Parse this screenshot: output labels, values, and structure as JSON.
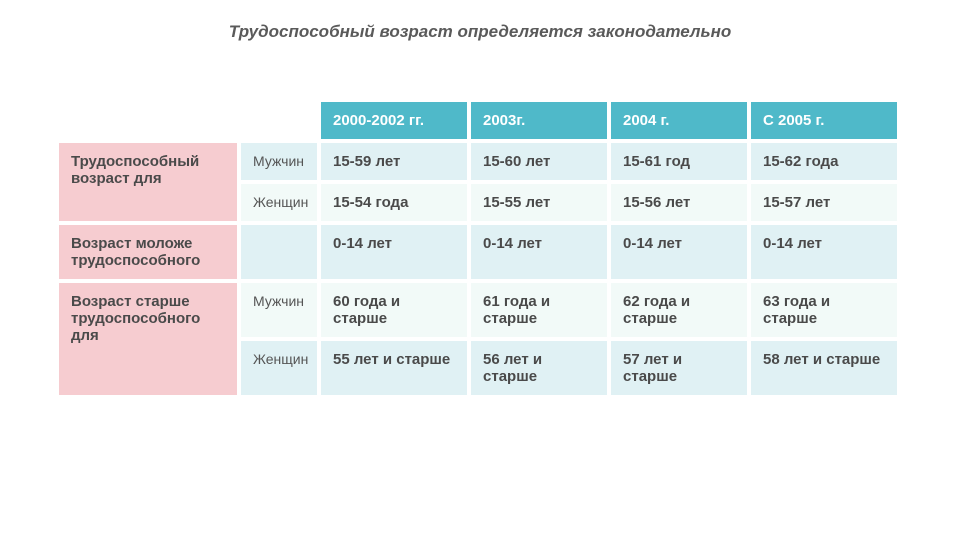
{
  "title": "Трудоспособный возраст определяется законодательно",
  "colors": {
    "header_bg": "#4fb9c9",
    "header_blank_bg": "#ffffff",
    "rowlabel_bg": "#f6ccd0",
    "cell_a_bg": "#e0f1f4",
    "cell_b_bg": "#f2faf8",
    "text": "#4a4a4a",
    "header_text": "#ffffff"
  },
  "fontsizes": {
    "title": 17,
    "header": 15,
    "cell": 15,
    "gender": 14
  },
  "columns": [
    "",
    "",
    "2000-2002 гг.",
    "2003г.",
    "2004 г.",
    "С 2005 г."
  ],
  "rows": [
    {
      "label": "Трудоспособный возраст для",
      "rowspan": 2,
      "gender": "Мужчин",
      "cells": [
        "15-59 лет",
        "15-60 лет",
        "15-61 год",
        "15-62 года"
      ],
      "shade": "a"
    },
    {
      "gender": "Женщин",
      "cells": [
        "15-54 года",
        "15-55 лет",
        "15-56 лет",
        "15-57 лет"
      ],
      "shade": "b"
    },
    {
      "label": "Возраст моложе трудоспособного",
      "rowspan": 1,
      "gender": "",
      "cells": [
        "0-14 лет",
        "0-14 лет",
        "0-14 лет",
        "0-14 лет"
      ],
      "shade": "a"
    },
    {
      "label": "Возраст старше трудоспособного для",
      "rowspan": 2,
      "gender": "Мужчин",
      "cells": [
        "60 года и старше",
        "61 года и старше",
        "62 года и старше",
        "63 года и старше"
      ],
      "shade": "b"
    },
    {
      "gender": "Женщин",
      "cells": [
        "55 лет и старше",
        "56 лет и старше",
        "57 лет и старше",
        "58 лет и старше"
      ],
      "shade": "a"
    }
  ]
}
